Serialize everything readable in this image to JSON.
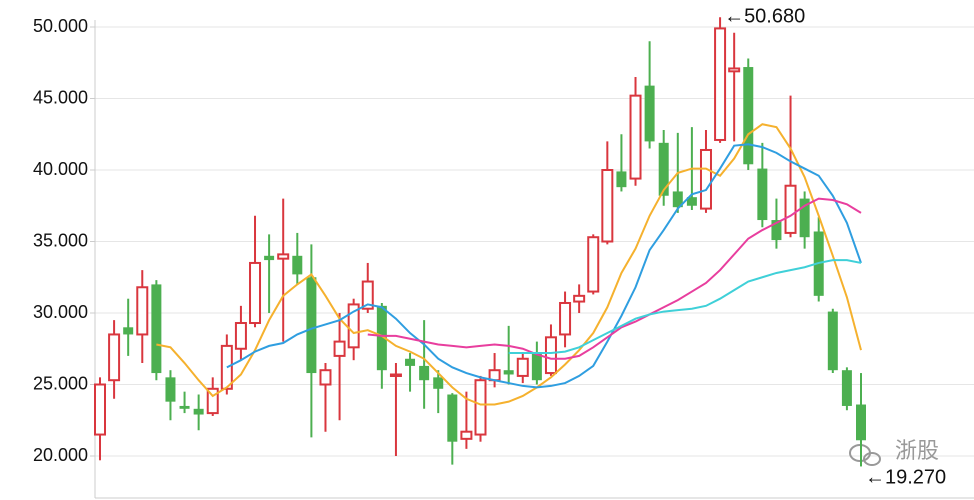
{
  "chart_data": {
    "type": "candlestick",
    "ylim": [
      17,
      51
    ],
    "yticks": [
      {
        "value": 20,
        "label": "20.000"
      },
      {
        "value": 25,
        "label": "25.000"
      },
      {
        "value": 30,
        "label": "30.000"
      },
      {
        "value": 35,
        "label": "35.000"
      },
      {
        "value": 40,
        "label": "40.000"
      },
      {
        "value": 45,
        "label": "45.000"
      },
      {
        "value": 50,
        "label": "50.000"
      }
    ],
    "grid": true,
    "up_color": "#d9363e",
    "down_color": "#4caf50",
    "open": [
      21.5,
      25.3,
      29.0,
      28.5,
      32.0,
      25.5,
      23.5,
      23.3,
      23.0,
      24.7,
      27.5,
      29.3,
      34.0,
      33.8,
      34.0,
      32.5,
      25.0,
      27.0,
      27.6,
      30.3,
      30.5,
      25.7,
      26.8,
      26.3,
      25.5,
      24.3,
      21.2,
      21.5,
      25.3,
      26.0,
      25.6,
      27.2,
      25.8,
      28.5,
      30.8,
      31.5,
      35.0,
      39.9,
      39.4,
      45.9,
      41.9,
      38.5,
      38.1,
      37.3,
      42.1,
      46.9,
      47.2,
      40.1,
      36.5,
      35.6,
      38.0,
      35.7,
      30.1,
      26.0,
      23.6
    ],
    "high": [
      25.5,
      29.5,
      31.0,
      33.0,
      32.3,
      26.0,
      24.5,
      24.3,
      25.5,
      28.5,
      30.5,
      36.8,
      35.5,
      38.0,
      35.6,
      34.8,
      26.5,
      30.0,
      31.0,
      33.5,
      30.7,
      26.5,
      27.2,
      29.5,
      26.0,
      24.4,
      24.5,
      25.6,
      27.2,
      29.1,
      27.2,
      28.0,
      29.2,
      31.5,
      32.0,
      35.5,
      42.0,
      42.5,
      46.5,
      49.0,
      42.8,
      42.6,
      43.0,
      42.8,
      50.68,
      49.6,
      47.8,
      41.9,
      38.0,
      45.2,
      38.5,
      36.7,
      30.3,
      26.2,
      25.8
    ],
    "low": [
      19.7,
      24.0,
      27.0,
      26.5,
      25.3,
      22.5,
      23.0,
      21.8,
      22.8,
      24.3,
      26.7,
      29.0,
      30.0,
      28.0,
      32.0,
      21.3,
      21.7,
      22.5,
      26.7,
      30.0,
      24.7,
      20.0,
      24.5,
      23.3,
      23.0,
      19.4,
      20.5,
      21.0,
      24.8,
      25.0,
      25.1,
      25.0,
      25.6,
      27.6,
      30.0,
      31.3,
      34.8,
      38.5,
      38.9,
      41.5,
      37.5,
      37.0,
      37.2,
      37.0,
      41.9,
      42.0,
      40.0,
      36.0,
      34.5,
      35.3,
      34.5,
      30.8,
      25.8,
      23.2,
      19.27
    ],
    "close": [
      25.0,
      28.5,
      28.5,
      31.8,
      25.8,
      23.8,
      23.3,
      22.9,
      24.7,
      27.7,
      29.3,
      33.5,
      33.7,
      34.1,
      32.7,
      25.8,
      26.0,
      28.0,
      30.6,
      32.2,
      26.0,
      25.7,
      26.3,
      25.3,
      24.7,
      21.0,
      21.7,
      25.3,
      26.0,
      25.7,
      26.8,
      25.3,
      28.3,
      30.7,
      31.2,
      35.3,
      40.0,
      38.8,
      45.2,
      42.0,
      38.2,
      37.4,
      37.5,
      41.4,
      49.9,
      47.1,
      40.4,
      36.5,
      35.1,
      38.9,
      35.3,
      31.2,
      26.0,
      23.5,
      21.1
    ],
    "lines": [
      {
        "color": "#f5b12e",
        "values": [
          null,
          null,
          null,
          null,
          27.8,
          27.6,
          26.5,
          25.3,
          24.2,
          24.8,
          25.7,
          27.4,
          29.5,
          31.2,
          32.0,
          32.7,
          31.2,
          29.6,
          28.6,
          28.8,
          28.4,
          27.7,
          27.3,
          26.8,
          25.8,
          24.8,
          24.0,
          23.6,
          23.6,
          23.8,
          24.2,
          24.8,
          25.5,
          26.4,
          27.4,
          28.6,
          30.4,
          32.8,
          34.5,
          36.8,
          38.6,
          39.8,
          40.1,
          40.1,
          39.6,
          40.8,
          42.5,
          43.2,
          43.0,
          41.5,
          39.5,
          36.8,
          34.0,
          31.1,
          27.4
        ]
      },
      {
        "color": "#2f9ee0",
        "values": [
          null,
          null,
          null,
          null,
          null,
          null,
          null,
          null,
          null,
          26.2,
          26.7,
          27.3,
          27.7,
          27.9,
          28.5,
          28.9,
          29.2,
          29.5,
          30.1,
          30.6,
          30.4,
          29.6,
          28.6,
          27.8,
          26.8,
          26.2,
          25.8,
          25.5,
          25.3,
          25.1,
          24.9,
          24.8,
          24.9,
          25.1,
          25.6,
          26.3,
          28.0,
          29.8,
          31.8,
          34.4,
          35.8,
          37.3,
          38.3,
          38.6,
          40.1,
          41.7,
          41.8,
          41.6,
          41.2,
          40.6,
          40.1,
          39.6,
          38.2,
          36.3,
          33.5
        ]
      },
      {
        "color": "#e83e9e",
        "values": [
          null,
          null,
          null,
          null,
          null,
          null,
          null,
          null,
          null,
          null,
          null,
          null,
          null,
          null,
          null,
          null,
          null,
          null,
          null,
          28.5,
          28.4,
          28.4,
          28.2,
          28.0,
          27.8,
          27.7,
          27.6,
          27.7,
          27.8,
          27.7,
          27.5,
          27.1,
          26.8,
          26.8,
          27.0,
          27.6,
          28.3,
          29.0,
          29.4,
          29.9,
          30.4,
          30.9,
          31.5,
          32.1,
          33.0,
          34.1,
          35.2,
          35.8,
          36.3,
          36.8,
          37.5,
          38.0,
          37.9,
          37.6,
          37.0
        ]
      },
      {
        "color": "#3fd0d8",
        "values": [
          null,
          null,
          null,
          null,
          null,
          null,
          null,
          null,
          null,
          null,
          null,
          null,
          null,
          null,
          null,
          null,
          null,
          null,
          null,
          null,
          null,
          null,
          null,
          null,
          null,
          null,
          null,
          null,
          null,
          27.2,
          27.2,
          27.2,
          27.2,
          27.3,
          27.6,
          28.1,
          28.6,
          29.1,
          29.6,
          29.9,
          30.1,
          30.2,
          30.3,
          30.5,
          31.0,
          31.6,
          32.2,
          32.5,
          32.8,
          33.0,
          33.2,
          33.5,
          33.7,
          33.7,
          33.5
        ]
      }
    ],
    "annotations": [
      {
        "text": "←50.680",
        "value": 50.68
      },
      {
        "text": "←19.270",
        "value": 19.27
      }
    ],
    "watermark": "浙股"
  }
}
